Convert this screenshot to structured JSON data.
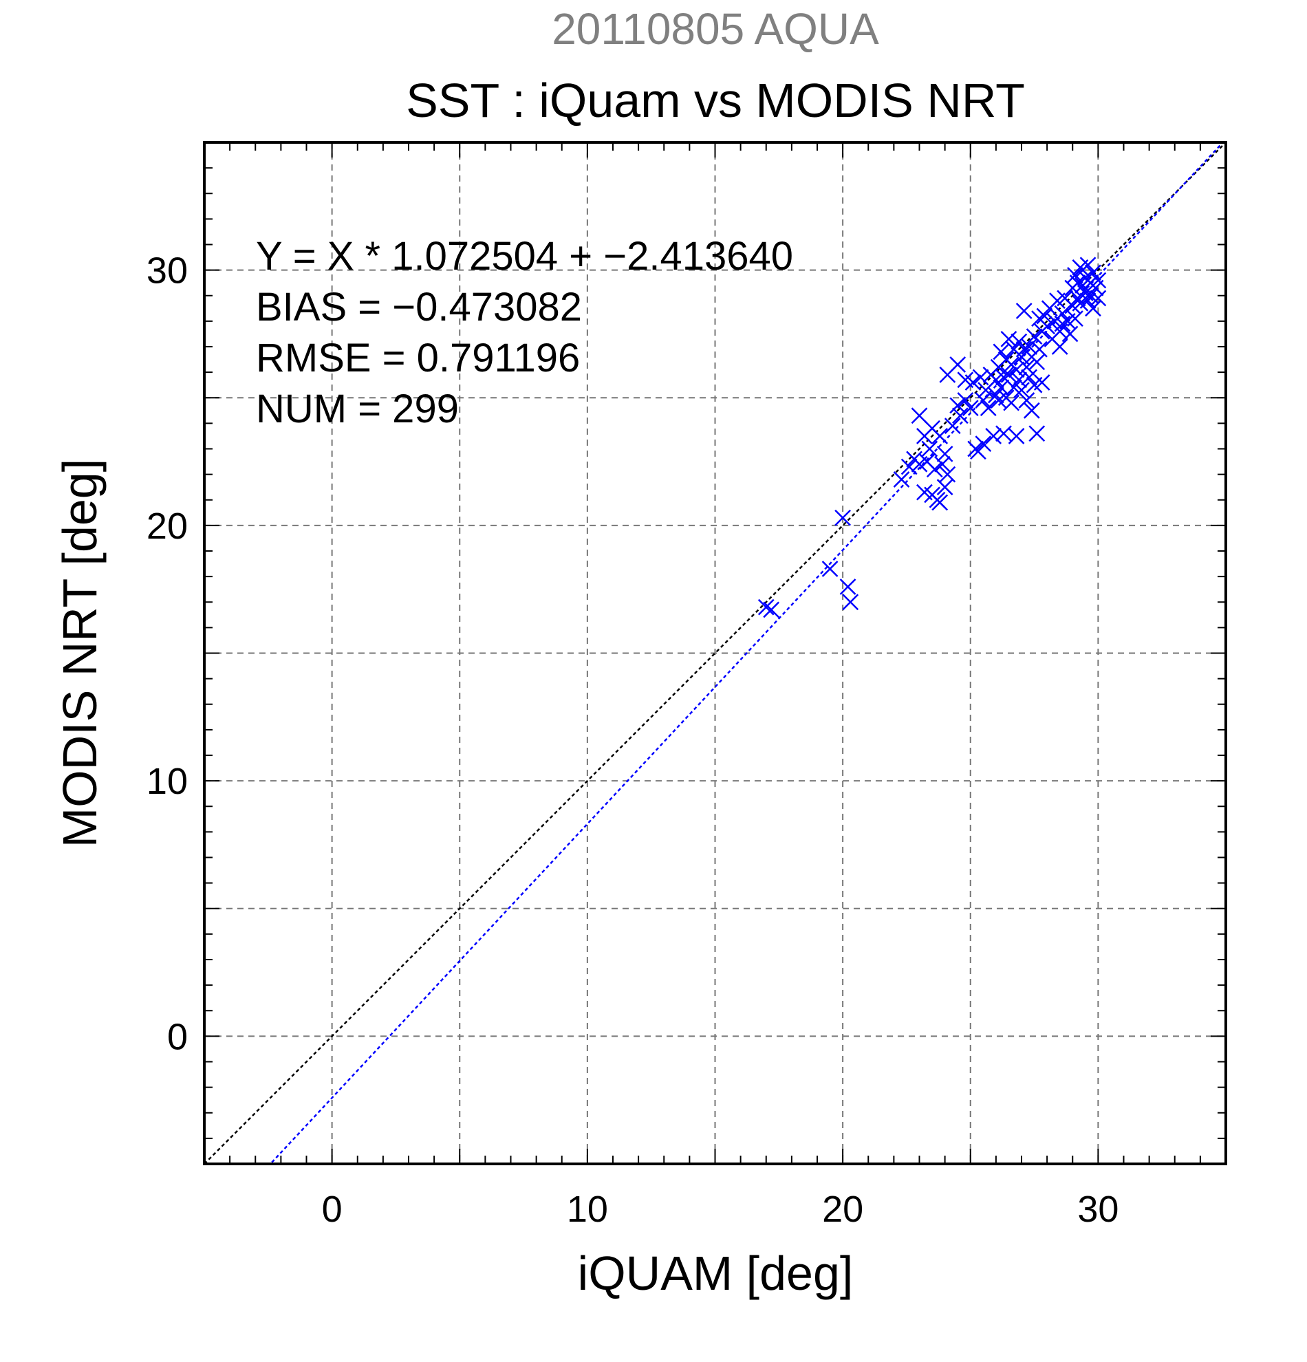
{
  "chart_data": {
    "type": "scatter",
    "title_top": "20110805 AQUA",
    "title": "SST : iQuam vs MODIS NRT",
    "xlabel": "iQUAM [deg]",
    "ylabel": "MODIS NRT [deg]",
    "xlim": [
      -5,
      35
    ],
    "ylim": [
      -5,
      35
    ],
    "major_ticks": [
      0,
      10,
      20,
      30
    ],
    "grid_step": 5,
    "minor_step": 1,
    "grid": true,
    "annotations": [
      "Y = X * 1.072504 + −2.413640",
      "BIAS = −0.473082",
      "RMSE = 0.791196",
      "NUM = 299"
    ],
    "reference_line": {
      "slope": 1,
      "intercept": 0,
      "color": "#000000"
    },
    "fit_line": {
      "slope": 1.072504,
      "intercept": -2.41364,
      "color": "#0000ff"
    },
    "marker_color": "#0000ff",
    "points": [
      [
        17.0,
        16.8
      ],
      [
        17.2,
        16.7
      ],
      [
        19.5,
        18.3
      ],
      [
        20.0,
        20.3
      ],
      [
        20.2,
        17.6
      ],
      [
        20.3,
        17.0
      ],
      [
        22.3,
        21.8
      ],
      [
        22.6,
        22.3
      ],
      [
        22.8,
        22.6
      ],
      [
        23.0,
        22.4
      ],
      [
        23.0,
        24.3
      ],
      [
        23.2,
        23.5
      ],
      [
        23.2,
        21.3
      ],
      [
        23.3,
        22.5
      ],
      [
        23.4,
        23.0
      ],
      [
        23.5,
        21.2
      ],
      [
        23.5,
        23.8
      ],
      [
        23.6,
        22.2
      ],
      [
        23.7,
        21.0
      ],
      [
        23.8,
        20.9
      ],
      [
        23.8,
        23.5
      ],
      [
        23.9,
        22.4
      ],
      [
        24.0,
        21.5
      ],
      [
        24.0,
        22.8
      ],
      [
        24.1,
        22.0
      ],
      [
        24.1,
        25.9
      ],
      [
        24.3,
        23.9
      ],
      [
        24.5,
        26.3
      ],
      [
        24.5,
        24.7
      ],
      [
        24.6,
        24.3
      ],
      [
        24.8,
        24.9
      ],
      [
        24.8,
        25.7
      ],
      [
        25.0,
        24.6
      ],
      [
        25.1,
        25.6
      ],
      [
        25.2,
        23.0
      ],
      [
        25.3,
        22.9
      ],
      [
        25.4,
        25.8
      ],
      [
        25.5,
        24.9
      ],
      [
        25.5,
        23.2
      ],
      [
        25.6,
        25.3
      ],
      [
        25.7,
        24.6
      ],
      [
        25.8,
        25.9
      ],
      [
        25.9,
        23.5
      ],
      [
        26.0,
        25.1
      ],
      [
        26.0,
        25.7
      ],
      [
        26.1,
        26.2
      ],
      [
        26.1,
        24.9
      ],
      [
        26.2,
        25.4
      ],
      [
        26.2,
        26.8
      ],
      [
        26.3,
        25.8
      ],
      [
        26.3,
        23.6
      ],
      [
        26.4,
        26.5
      ],
      [
        26.4,
        25.0
      ],
      [
        26.5,
        27.3
      ],
      [
        26.5,
        25.9
      ],
      [
        26.6,
        24.8
      ],
      [
        26.6,
        26.3
      ],
      [
        26.7,
        25.4
      ],
      [
        26.7,
        26.9
      ],
      [
        26.8,
        26.1
      ],
      [
        26.8,
        23.5
      ],
      [
        26.9,
        25.7
      ],
      [
        26.9,
        27.2
      ],
      [
        27.0,
        26.6
      ],
      [
        27.0,
        25.3
      ],
      [
        27.1,
        26.9
      ],
      [
        27.1,
        28.4
      ],
      [
        27.2,
        26.2
      ],
      [
        27.2,
        24.9
      ],
      [
        27.3,
        27.0
      ],
      [
        27.3,
        25.8
      ],
      [
        27.4,
        26.6
      ],
      [
        27.4,
        24.5
      ],
      [
        27.5,
        27.4
      ],
      [
        27.5,
        25.5
      ],
      [
        27.6,
        23.6
      ],
      [
        27.6,
        26.4
      ],
      [
        27.7,
        28.1
      ],
      [
        27.7,
        26.9
      ],
      [
        27.8,
        27.6
      ],
      [
        27.8,
        25.6
      ],
      [
        27.9,
        28.2
      ],
      [
        28.0,
        27.8
      ],
      [
        28.1,
        28.5
      ],
      [
        28.2,
        27.3
      ],
      [
        28.3,
        28.0
      ],
      [
        28.4,
        28.8
      ],
      [
        28.5,
        27.6
      ],
      [
        28.5,
        27.0
      ],
      [
        28.6,
        28.3
      ],
      [
        28.6,
        27.9
      ],
      [
        28.7,
        28.9
      ],
      [
        28.8,
        28.0
      ],
      [
        28.9,
        27.5
      ],
      [
        29.0,
        28.6
      ],
      [
        29.0,
        29.3
      ],
      [
        29.1,
        28.1
      ],
      [
        29.1,
        29.8
      ],
      [
        29.2,
        28.9
      ],
      [
        29.2,
        29.5
      ],
      [
        29.3,
        30.1
      ],
      [
        29.3,
        28.7
      ],
      [
        29.4,
        29.4
      ],
      [
        29.4,
        30.0
      ],
      [
        29.5,
        29.1
      ],
      [
        29.5,
        29.7
      ],
      [
        29.6,
        28.8
      ],
      [
        29.6,
        30.2
      ],
      [
        29.7,
        29.5
      ],
      [
        29.7,
        29.0
      ],
      [
        29.8,
        29.9
      ],
      [
        29.8,
        28.5
      ],
      [
        29.9,
        29.3
      ],
      [
        30.0,
        29.6
      ],
      [
        30.0,
        28.9
      ]
    ]
  }
}
